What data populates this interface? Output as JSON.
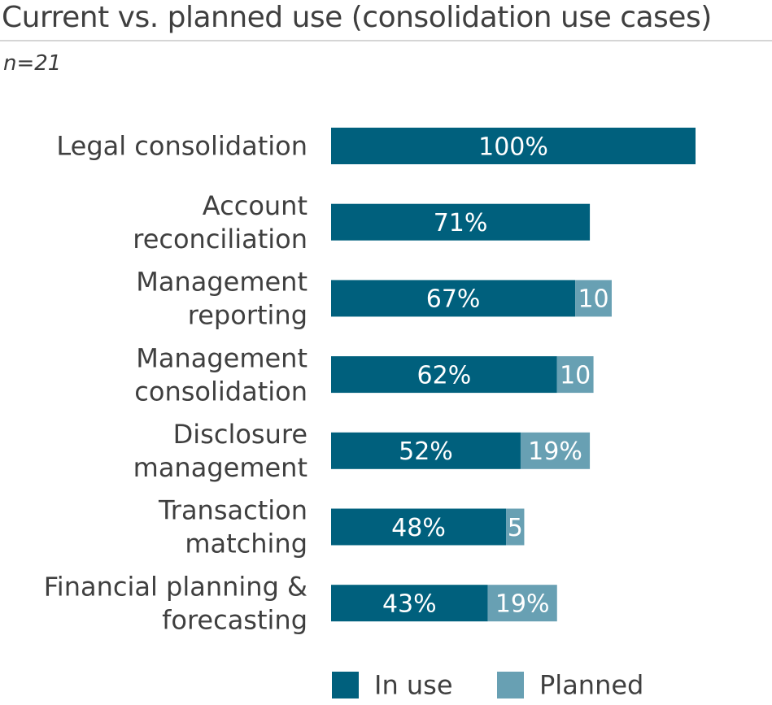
{
  "chart_data": {
    "type": "bar",
    "orientation": "horizontal",
    "stacked": true,
    "title": "Current vs. planned use (consolidation use cases)",
    "subtitle": "n=21",
    "categories": [
      [
        "Legal consolidation"
      ],
      [
        "Account",
        "reconciliation"
      ],
      [
        "Management",
        "reporting"
      ],
      [
        "Management",
        "consolidation"
      ],
      [
        "Disclosure",
        "management"
      ],
      [
        "Transaction",
        "matching"
      ],
      [
        "Financial planning &",
        "forecasting"
      ]
    ],
    "series": [
      {
        "name": "In use",
        "color": "#00607d",
        "values": [
          100,
          71,
          67,
          62,
          52,
          48,
          43
        ],
        "labels": [
          "100%",
          "71%",
          "67%",
          "62%",
          "52%",
          "48%",
          "43%"
        ]
      },
      {
        "name": "Planned",
        "color": "#68a0b3",
        "values": [
          0,
          0,
          10,
          10,
          19,
          5,
          19
        ],
        "labels": [
          "",
          "",
          "10",
          "10",
          "19%",
          "5",
          "19%"
        ]
      }
    ],
    "xlim": [
      0,
      100
    ],
    "grid": false,
    "legend_position": "bottom-center"
  }
}
